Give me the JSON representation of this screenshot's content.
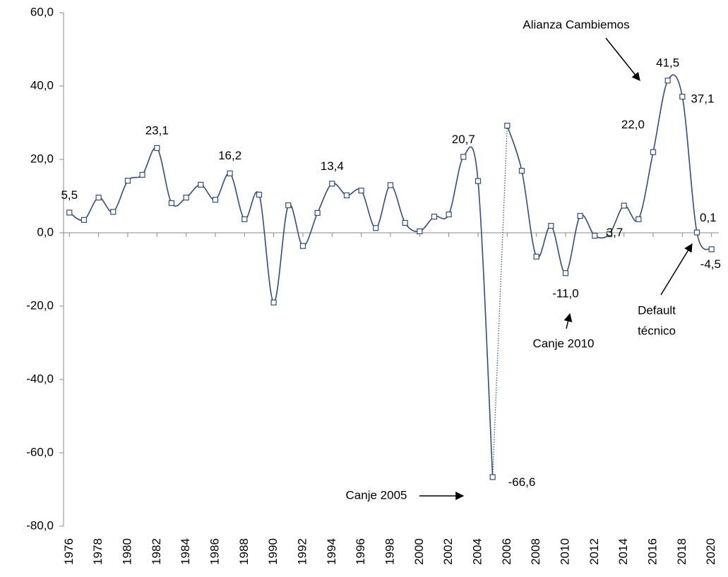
{
  "chart_data": {
    "type": "line",
    "x": [
      1976,
      1977,
      1978,
      1979,
      1980,
      1981,
      1982,
      1983,
      1984,
      1985,
      1986,
      1987,
      1988,
      1989,
      1990,
      1991,
      1992,
      1993,
      1994,
      1995,
      1996,
      1997,
      1998,
      1999,
      2000,
      2001,
      2002,
      2003,
      2004,
      2005,
      2006,
      2007,
      2008,
      2009,
      2010,
      2011,
      2012,
      2013,
      2014,
      2015,
      2016,
      2017,
      2018,
      2019,
      2020
    ],
    "series": [
      {
        "color": "#2f4e7d",
        "values": [
          5.5,
          3.5,
          9.6,
          5.7,
          14.2,
          15.8,
          23.1,
          8.1,
          9.6,
          13.1,
          9.0,
          16.2,
          3.7,
          10.4,
          -19.0,
          7.5,
          -3.6,
          5.4,
          13.4,
          10.2,
          11.5,
          1.3,
          13.0,
          2.7,
          0.4,
          4.4,
          5.0,
          20.7,
          14.1,
          -66.6,
          29.2,
          16.9,
          -6.5,
          1.9,
          -11.0,
          4.6,
          -0.8,
          -0.4,
          7.4,
          3.7,
          22.0,
          41.5,
          37.1,
          0.1,
          -4.5
        ],
        "value_labels": [
          "5,5",
          null,
          null,
          null,
          null,
          null,
          "23,1",
          null,
          null,
          null,
          null,
          "16,2",
          null,
          null,
          null,
          null,
          null,
          null,
          "13,4",
          null,
          null,
          null,
          null,
          null,
          null,
          null,
          null,
          "20,7",
          null,
          "-66,6",
          null,
          null,
          null,
          null,
          "-11,0",
          null,
          null,
          null,
          null,
          "3,7",
          "22,0",
          "41,5",
          "37,1",
          "0,1",
          "-4,5"
        ]
      }
    ],
    "xlim": [
      1975.6,
      2020.5
    ],
    "xticks": [
      1976,
      1978,
      1980,
      1982,
      1984,
      1986,
      1988,
      1990,
      1992,
      1994,
      1996,
      1998,
      2000,
      2002,
      2004,
      2006,
      2008,
      2010,
      2012,
      2014,
      2016,
      2018,
      2020
    ],
    "ylim": [
      -80,
      60
    ],
    "yticks": [
      {
        "value": -80,
        "label": "-80,0"
      },
      {
        "value": -60,
        "label": "-60,0"
      },
      {
        "value": -40,
        "label": "-40,0"
      },
      {
        "value": -20,
        "label": "-20,0"
      },
      {
        "value": 0,
        "label": "0,0"
      },
      {
        "value": 20,
        "label": "20,0"
      },
      {
        "value": 40,
        "label": "40,0"
      },
      {
        "value": 60,
        "label": "60,0"
      }
    ],
    "annotations": [
      "Alianza Cambiemos",
      "Canje 2005",
      "Canje 2010",
      [
        "Default",
        "técnico"
      ]
    ]
  }
}
